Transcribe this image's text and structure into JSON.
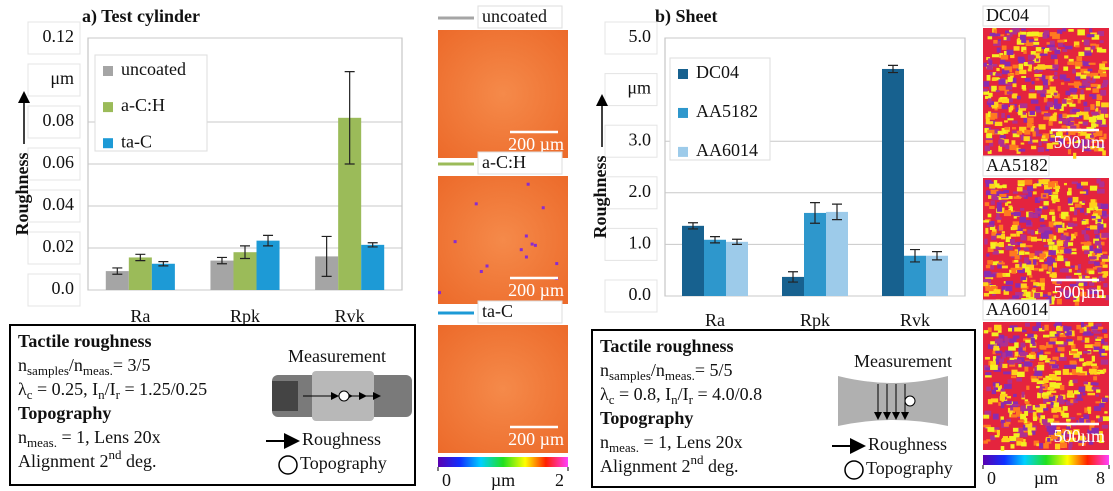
{
  "chart_data": [
    {
      "type": "bar",
      "title": "a) Test cylinder",
      "categories": [
        "Ra",
        "Rpk",
        "Rvk"
      ],
      "series": [
        {
          "name": "uncoated",
          "color": "#a5a5a5",
          "values": [
            0.009,
            0.014,
            0.016
          ],
          "errors": [
            0.0015,
            0.0015,
            0.0095
          ]
        },
        {
          "name": "a-C:H",
          "color": "#9bbb59",
          "values": [
            0.0155,
            0.018,
            0.082
          ],
          "errors": [
            0.0015,
            0.003,
            0.022
          ]
        },
        {
          "name": "ta-C",
          "color": "#1d9ad6",
          "values": [
            0.0125,
            0.0235,
            0.0215
          ],
          "errors": [
            0.001,
            0.0025,
            0.001
          ]
        }
      ],
      "ylim": [
        0,
        0.12
      ],
      "yticks": [
        {
          "value": 0,
          "label": "0.0"
        },
        0.02,
        0.04,
        0.06,
        0.08,
        0.12
      ],
      "y_label": "Roughness",
      "y_unit": "μm",
      "grid": true,
      "legend": "upper left"
    },
    {
      "type": "bar",
      "title": "b) Sheet",
      "categories": [
        "Ra",
        "Rpk",
        "Rvk"
      ],
      "series": [
        {
          "name": "DC04",
          "color": "#17618f",
          "values": [
            1.36,
            0.37,
            4.4
          ],
          "errors": [
            0.06,
            0.1,
            0.07
          ]
        },
        {
          "name": "AA5182",
          "color": "#2e97cc",
          "values": [
            1.09,
            1.61,
            0.78
          ],
          "errors": [
            0.06,
            0.2,
            0.12
          ]
        },
        {
          "name": "AA6014",
          "color": "#9dcbea",
          "values": [
            1.05,
            1.63,
            0.78
          ],
          "errors": [
            0.05,
            0.15,
            0.08
          ]
        }
      ],
      "ylim": [
        0,
        5
      ],
      "yticks": [
        {
          "value": 0,
          "label": "0.0"
        },
        {
          "value": 1,
          "label": "1.0"
        },
        {
          "value": 2,
          "label": "2.0"
        },
        {
          "value": 3,
          "label": "3.0"
        },
        {
          "value": 5,
          "label": "5.0"
        }
      ],
      "y_label": "Roughness",
      "y_unit": "μm",
      "grid": true,
      "legend": "upper left"
    }
  ],
  "image_columns": [
    {
      "images": [
        {
          "label": "uncoated",
          "scale": "200 µm"
        },
        {
          "label": "a-C:H",
          "scale": "200 µm"
        },
        {
          "label": "ta-C",
          "scale": "200 µm"
        }
      ],
      "colorbar": {
        "ticks": [
          0,
          2
        ],
        "unit": "µm"
      }
    },
    {
      "images": [
        {
          "label": "DC04",
          "scale": "500µm"
        },
        {
          "label": "AA5182",
          "scale": "500µm"
        },
        {
          "label": "AA6014",
          "scale": "500µm"
        }
      ],
      "colorbar": {
        "ticks": [
          0,
          8
        ],
        "unit": "µm"
      }
    }
  ],
  "info_boxes": [
    {
      "lines": [
        {
          "bold": true,
          "parts": [
            "Tactile roughness"
          ]
        },
        {
          "parts": [
            "n",
            {
              "sub": "samples"
            },
            "/n",
            {
              "sub": "meas."
            },
            "= 3/5"
          ]
        },
        {
          "parts": [
            "λ",
            {
              "sub": "c"
            },
            " = 0.25, I",
            {
              "sub": "n"
            },
            "/I",
            {
              "sub": "r"
            },
            " = 1.25/0.25"
          ]
        },
        {
          "bold": true,
          "parts": [
            "Topography"
          ]
        },
        {
          "parts": [
            "n",
            {
              "sub": "meas."
            },
            " = 1, Lens 20x"
          ]
        },
        {
          "parts": [
            "Alignment  2",
            {
              "sup": "nd"
            },
            " deg."
          ]
        }
      ],
      "measurement": "Measurement",
      "roughness": "Roughness",
      "topography": "Topography"
    },
    {
      "lines": [
        {
          "bold": true,
          "parts": [
            "Tactile roughness"
          ]
        },
        {
          "parts": [
            "n",
            {
              "sub": "samples"
            },
            "/n",
            {
              "sub": "meas."
            },
            "= 5/5"
          ]
        },
        {
          "parts": [
            "λ",
            {
              "sub": "c"
            },
            " = 0.8, I",
            {
              "sub": "n"
            },
            "/I",
            {
              "sub": "r"
            },
            " = 4.0/0.8"
          ]
        },
        {
          "bold": true,
          "parts": [
            "Topography"
          ]
        },
        {
          "parts": [
            "n",
            {
              "sub": "meas."
            },
            " = 1, Lens 20x"
          ]
        },
        {
          "parts": [
            "Alignment  2",
            {
              "sup": "nd"
            },
            " deg."
          ]
        }
      ],
      "measurement": "Measurement",
      "roughness": "Roughness",
      "topography": "Topography"
    }
  ]
}
